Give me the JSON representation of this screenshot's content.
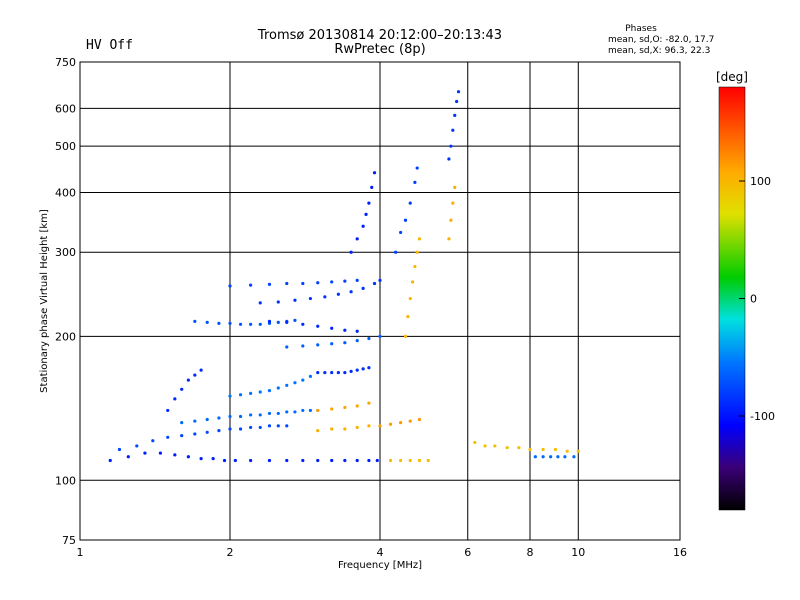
{
  "status": {
    "hv_text": "HV Off",
    "hv_color": "#cc0000"
  },
  "header": {
    "title_line1": "Tromsø 20130814 20:12:00–20:13:43",
    "title_line2": "RwPretec (8p)"
  },
  "stats": {
    "heading": "Phases",
    "line_o": "mean, sd,O: -82.0, 17.7",
    "line_x": "mean, sd,X:  96.3, 22.3"
  },
  "colorbar": {
    "unit": "[deg]",
    "range": [
      -180,
      180
    ],
    "ticks": [
      100,
      0,
      -100
    ]
  },
  "chart_data": {
    "type": "scatter",
    "xlabel": "Frequency [MHz]",
    "ylabel": "Stationary phase Virtual Height [km]",
    "x_scale": "log",
    "y_scale": "log",
    "xlim": [
      1,
      16
    ],
    "ylim": [
      75,
      750
    ],
    "xticks": [
      1,
      2,
      4,
      6,
      8,
      10,
      16
    ],
    "yticks": [
      75,
      100,
      200,
      300,
      400,
      500,
      600,
      750
    ],
    "x_grid": [
      2,
      4,
      6,
      8,
      10
    ],
    "y_grid": [
      100,
      200,
      300,
      400,
      500,
      600
    ],
    "color_by": "phase",
    "traces": [
      {
        "x": [
          1.15,
          1.25,
          1.35,
          1.45,
          1.55,
          1.65,
          1.75,
          1.85,
          1.95,
          2.05,
          2.2,
          2.4,
          2.6,
          2.8,
          3.0,
          3.2,
          3.4,
          3.6,
          3.8,
          3.95
        ],
        "y": [
          110,
          112,
          114,
          114,
          113,
          112,
          111,
          111,
          110,
          110,
          110,
          110,
          110,
          110,
          110,
          110,
          110,
          110,
          110,
          110
        ],
        "phase": -95
      },
      {
        "x": [
          1.2,
          1.3,
          1.4,
          1.5,
          1.6,
          1.7,
          1.8,
          1.9,
          2.0,
          2.1,
          2.2,
          2.3,
          2.4,
          2.5,
          2.6
        ],
        "y": [
          116,
          118,
          121,
          123,
          124,
          125,
          126,
          127,
          128,
          128,
          129,
          129,
          130,
          130,
          130
        ],
        "phase": -75
      },
      {
        "x": [
          1.6,
          1.7,
          1.8,
          1.9,
          2.0,
          2.1,
          2.2,
          2.3,
          2.4,
          2.5,
          2.6,
          2.7,
          2.8,
          2.9,
          3.0
        ],
        "y": [
          132,
          133,
          134,
          135,
          136,
          136,
          137,
          137,
          138,
          138,
          139,
          139,
          140,
          140,
          140
        ],
        "phase": -60
      },
      {
        "x": [
          1.5,
          1.55,
          1.6,
          1.65,
          1.7,
          1.75
        ],
        "y": [
          140,
          148,
          155,
          162,
          166,
          170
        ],
        "phase": -90
      },
      {
        "x": [
          2.0,
          2.1,
          2.2,
          2.3,
          2.4,
          2.5,
          2.6,
          2.7,
          2.8,
          2.9
        ],
        "y": [
          150,
          151,
          152,
          153,
          154,
          156,
          158,
          160,
          162,
          165
        ],
        "phase": -55
      },
      {
        "x": [
          1.7,
          1.8,
          1.9,
          2.0,
          2.1,
          2.2,
          2.3,
          2.4,
          2.5,
          2.6,
          2.7
        ],
        "y": [
          215,
          214,
          213,
          213,
          212,
          212,
          212,
          213,
          214,
          215,
          216
        ],
        "phase": -70
      },
      {
        "x": [
          2.0,
          2.2,
          2.4,
          2.6,
          2.8,
          3.0,
          3.2,
          3.4,
          3.6
        ],
        "y": [
          255,
          256,
          257,
          258,
          258,
          259,
          260,
          261,
          262
        ],
        "phase": -78
      },
      {
        "x": [
          2.3,
          2.5,
          2.7,
          2.9,
          3.1,
          3.3,
          3.5,
          3.7,
          3.9,
          4.0
        ],
        "y": [
          235,
          236,
          238,
          240,
          242,
          245,
          248,
          252,
          258,
          262
        ],
        "phase": -85
      },
      {
        "x": [
          2.4,
          2.6,
          2.8,
          3.0,
          3.2,
          3.4,
          3.6
        ],
        "y": [
          215,
          214,
          212,
          210,
          208,
          206,
          205
        ],
        "phase": -90
      },
      {
        "x": [
          2.6,
          2.8,
          3.0,
          3.2,
          3.4,
          3.6,
          3.8,
          4.0
        ],
        "y": [
          190,
          191,
          192,
          193,
          194,
          196,
          198,
          200
        ],
        "phase": -65
      },
      {
        "x": [
          3.0,
          3.1,
          3.2,
          3.3,
          3.4,
          3.5,
          3.6,
          3.7,
          3.8
        ],
        "y": [
          168,
          168,
          168,
          168,
          168,
          169,
          170,
          171,
          172
        ],
        "phase": -88
      },
      {
        "x": [
          3.5,
          3.6,
          3.7,
          3.75,
          3.8,
          3.85,
          3.9
        ],
        "y": [
          300,
          320,
          340,
          360,
          380,
          410,
          440
        ],
        "phase": -95
      },
      {
        "x": [
          4.3,
          4.4,
          4.5,
          4.6,
          4.7,
          4.75
        ],
        "y": [
          300,
          330,
          350,
          380,
          420,
          450
        ],
        "phase": -80
      },
      {
        "x": [
          5.5,
          5.55,
          5.6,
          5.65,
          5.7,
          5.75
        ],
        "y": [
          470,
          500,
          540,
          580,
          620,
          650
        ],
        "phase": -85
      },
      {
        "x": [
          3.0,
          3.2,
          3.4,
          3.6,
          3.8
        ],
        "y": [
          140,
          141,
          142,
          143,
          145
        ],
        "phase": 110
      },
      {
        "x": [
          3.0,
          3.2,
          3.4,
          3.6,
          3.8
        ],
        "y": [
          127,
          128,
          128,
          129,
          130
        ],
        "phase": 105
      },
      {
        "x": [
          4.0,
          4.2,
          4.4,
          4.6,
          4.8
        ],
        "y": [
          130,
          131,
          132,
          133,
          134
        ],
        "phase": 115
      },
      {
        "x": [
          4.2,
          4.4,
          4.6,
          4.8,
          5.0
        ],
        "y": [
          110,
          110,
          110,
          110,
          110
        ],
        "phase": 95
      },
      {
        "x": [
          4.5,
          4.55,
          4.6,
          4.65,
          4.7,
          4.75,
          4.8
        ],
        "y": [
          200,
          220,
          240,
          260,
          280,
          300,
          320
        ],
        "phase": 100
      },
      {
        "x": [
          5.5,
          5.55,
          5.6,
          5.65
        ],
        "y": [
          320,
          350,
          380,
          410
        ],
        "phase": 105
      },
      {
        "x": [
          6.2,
          6.5,
          6.8,
          7.2,
          7.6,
          8.0,
          8.5,
          9.0,
          9.5,
          10.0
        ],
        "y": [
          120,
          118,
          118,
          117,
          117,
          116,
          116,
          116,
          115,
          115
        ],
        "phase": 95
      },
      {
        "x": [
          8.2,
          8.5,
          8.8,
          9.1,
          9.4,
          9.8
        ],
        "y": [
          112,
          112,
          112,
          112,
          112,
          112
        ],
        "phase": -60
      }
    ]
  }
}
